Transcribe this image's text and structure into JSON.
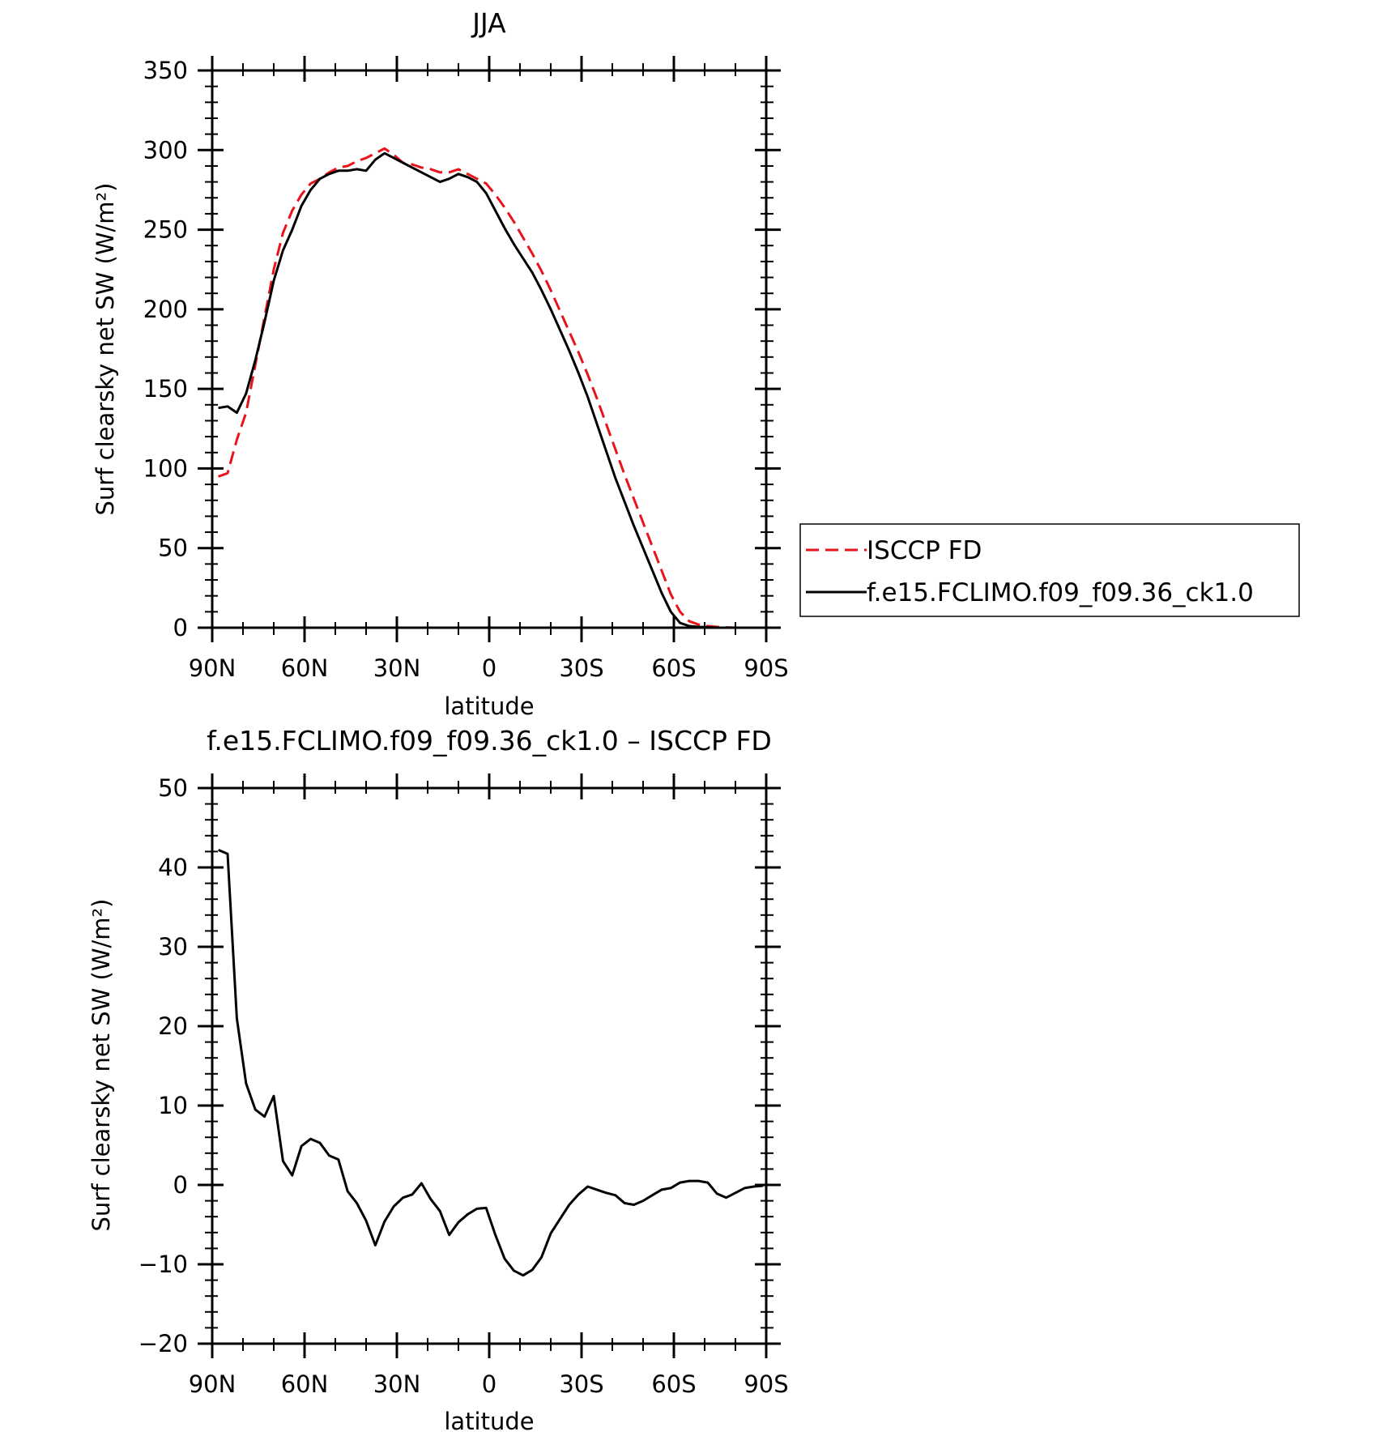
{
  "chart_data": [
    {
      "type": "line",
      "title": "JJA",
      "xlabel": "latitude",
      "ylabel": "Surf clearsky net SW (W/m²)",
      "x_unit": "degrees latitude (north positive)",
      "xlim": [
        90,
        -90
      ],
      "ylim": [
        0,
        350
      ],
      "xticks": [
        90,
        60,
        30,
        0,
        -30,
        -60,
        -90
      ],
      "xtick_labels": [
        "90N",
        "60N",
        "30N",
        "0",
        "30S",
        "60S",
        "90S"
      ],
      "yticks": [
        0,
        50,
        100,
        150,
        200,
        250,
        300,
        350
      ],
      "ytick_labels": [
        "0",
        "50",
        "100",
        "150",
        "200",
        "250",
        "300",
        "350"
      ],
      "grid": false,
      "legend_position": "right",
      "series": [
        {
          "name": "ISCCP FD",
          "color": "#e8141a",
          "dash": "dashed",
          "x": [
            88,
            85,
            82,
            79,
            76,
            73,
            70,
            67,
            64,
            61,
            58,
            55,
            52,
            49,
            46,
            43,
            40,
            37,
            34,
            31,
            28,
            25,
            22,
            19,
            16,
            13,
            10,
            7,
            4,
            1,
            -2,
            -5,
            -8,
            -11,
            -14,
            -17,
            -20,
            -23,
            -26,
            -29,
            -32,
            -35,
            -38,
            -41,
            -44,
            -47,
            -50,
            -53,
            -56,
            -59,
            -62,
            -65,
            -68,
            -71,
            -74,
            -77,
            -80,
            -83,
            -86,
            -89
          ],
          "y": [
            95,
            97,
            118,
            135,
            165,
            195,
            225,
            248,
            262,
            272,
            279,
            282,
            286,
            289,
            290,
            293,
            295,
            298,
            301,
            297,
            292,
            291,
            289,
            288,
            286,
            286,
            288,
            285,
            282,
            279,
            272,
            264,
            255,
            245,
            235,
            224,
            212,
            199,
            186,
            173,
            159,
            144,
            128,
            112,
            96,
            81,
            66,
            51,
            36,
            21,
            10,
            4,
            2,
            1,
            0.5,
            0.2,
            0,
            0,
            0,
            0
          ]
        },
        {
          "name": "f.e15.FCLIMO.f09_f09.36_ck1.0",
          "color": "#000000",
          "dash": "solid",
          "x": [
            88,
            85,
            82,
            79,
            76,
            73,
            70,
            67,
            64,
            61,
            58,
            55,
            52,
            49,
            46,
            43,
            40,
            37,
            34,
            31,
            28,
            25,
            22,
            19,
            16,
            13,
            10,
            7,
            4,
            1,
            -2,
            -5,
            -8,
            -11,
            -14,
            -17,
            -20,
            -23,
            -26,
            -29,
            -32,
            -35,
            -38,
            -41,
            -44,
            -47,
            -50,
            -53,
            -56,
            -59,
            -62,
            -65,
            -68,
            -71,
            -74,
            -77,
            -80,
            -83,
            -86,
            -89
          ],
          "y": [
            138,
            139,
            135,
            147,
            168,
            192,
            218,
            237,
            250,
            265,
            275,
            282,
            285,
            287,
            287,
            288,
            287,
            294,
            298,
            295,
            292,
            289,
            286,
            283,
            280,
            282,
            285,
            283,
            280,
            273,
            262,
            251,
            241,
            232,
            223,
            212,
            200,
            187,
            174,
            160,
            145,
            128,
            111,
            94,
            79,
            64,
            50,
            36,
            22,
            10,
            3,
            1,
            0.5,
            0.3,
            0,
            0,
            0,
            0,
            0,
            0
          ]
        }
      ]
    },
    {
      "type": "line",
      "title": "f.e15.FCLIMO.f09_f09.36_ck1.0 – ISCCP FD",
      "xlabel": "latitude",
      "ylabel": "Surf clearsky net SW (W/m²)",
      "x_unit": "degrees latitude (north positive)",
      "xlim": [
        90,
        -90
      ],
      "ylim": [
        -20,
        50
      ],
      "xticks": [
        90,
        60,
        30,
        0,
        -30,
        -60,
        -90
      ],
      "xtick_labels": [
        "90N",
        "60N",
        "30N",
        "0",
        "30S",
        "60S",
        "90S"
      ],
      "yticks": [
        -20,
        -10,
        0,
        10,
        20,
        30,
        40,
        50
      ],
      "ytick_labels": [
        "−20",
        "−10",
        "0",
        "10",
        "20",
        "30",
        "40",
        "50"
      ],
      "grid": false,
      "series": [
        {
          "color": "#000000",
          "dash": "solid",
          "x": [
            88,
            85,
            82,
            79,
            76,
            73,
            70,
            67,
            64,
            61,
            58,
            55,
            52,
            49,
            46,
            43,
            40,
            37,
            34,
            31,
            28,
            25,
            22,
            19,
            16,
            13,
            10,
            7,
            4,
            1,
            -2,
            -5,
            -8,
            -11,
            -14,
            -17,
            -20,
            -23,
            -26,
            -29,
            -32,
            -35,
            -38,
            -41,
            -44,
            -47,
            -50,
            -53,
            -56,
            -59,
            -62,
            -65,
            -68,
            -71,
            -74,
            -77,
            -80,
            -83,
            -86,
            -89
          ],
          "y": [
            42.2,
            41.7,
            21,
            12.8,
            9.5,
            8.6,
            11.2,
            3,
            1.2,
            4.9,
            5.8,
            5.3,
            3.7,
            3.2,
            -0.8,
            -2.3,
            -4.5,
            -7.6,
            -4.6,
            -2.7,
            -1.6,
            -1.2,
            0.2,
            -1.8,
            -3.3,
            -6.3,
            -4.7,
            -3.7,
            -3,
            -2.9,
            -6.3,
            -9.3,
            -10.8,
            -11.4,
            -10.7,
            -9.1,
            -6.1,
            -4.3,
            -2.5,
            -1.2,
            -0.2,
            -0.6,
            -1,
            -1.3,
            -2.3,
            -2.5,
            -2,
            -1.3,
            -0.6,
            -0.4,
            0.3,
            0.5,
            0.5,
            0.3,
            -1.1,
            -1.6,
            -1,
            -0.4,
            -0.2,
            -0.1
          ]
        }
      ]
    }
  ]
}
